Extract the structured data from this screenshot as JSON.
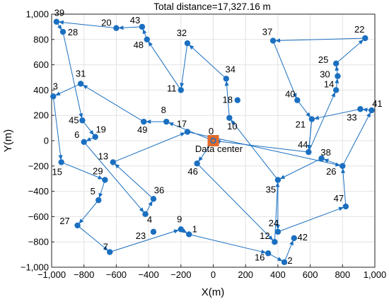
{
  "chart_data": {
    "type": "scatter",
    "title": "Total distance=17,327.16 m",
    "xlabel": "X(m)",
    "ylabel": "Y(m)",
    "xlim": [
      -1000,
      1000
    ],
    "ylim": [
      -1000,
      1000
    ],
    "xticks": [
      -1000,
      -800,
      -600,
      -400,
      -200,
      0,
      200,
      400,
      600,
      800,
      1000
    ],
    "yticks": [
      -1000,
      -800,
      -600,
      -400,
      -200,
      0,
      200,
      400,
      600,
      800,
      1000
    ],
    "grid": true,
    "colors": {
      "route": "#1a6fc0",
      "node": "#1a6fc0",
      "center_fill": "#e06a2b",
      "center_node": "#1a6fc0"
    },
    "data_center": {
      "label": "Data center",
      "x": 0,
      "y": 0
    },
    "nodes": [
      {
        "id": "0",
        "x": 0,
        "y": 0
      },
      {
        "id": "1",
        "x": -150,
        "y": -740
      },
      {
        "id": "2",
        "x": 440,
        "y": -960
      },
      {
        "id": "3",
        "x": -990,
        "y": 350
      },
      {
        "id": "4",
        "x": -420,
        "y": -580
      },
      {
        "id": "5",
        "x": -710,
        "y": -470
      },
      {
        "id": "6",
        "x": -800,
        "y": -10
      },
      {
        "id": "7",
        "x": -640,
        "y": -880
      },
      {
        "id": "8",
        "x": -290,
        "y": 150
      },
      {
        "id": "9",
        "x": -200,
        "y": -700
      },
      {
        "id": "10",
        "x": 100,
        "y": 180
      },
      {
        "id": "11",
        "x": -200,
        "y": 400
      },
      {
        "id": "12",
        "x": 380,
        "y": -800
      },
      {
        "id": "13",
        "x": -620,
        "y": -170
      },
      {
        "id": "14",
        "x": 760,
        "y": 400
      },
      {
        "id": "15",
        "x": -940,
        "y": -170
      },
      {
        "id": "16",
        "x": 340,
        "y": -890
      },
      {
        "id": "17",
        "x": -160,
        "y": 70
      },
      {
        "id": "18",
        "x": 150,
        "y": 320
      },
      {
        "id": "19",
        "x": -730,
        "y": 30
      },
      {
        "id": "20",
        "x": -600,
        "y": 890
      },
      {
        "id": "21",
        "x": 610,
        "y": 170
      },
      {
        "id": "22",
        "x": 940,
        "y": 810
      },
      {
        "id": "23",
        "x": -370,
        "y": -720
      },
      {
        "id": "24",
        "x": 400,
        "y": -720
      },
      {
        "id": "25",
        "x": 760,
        "y": 610
      },
      {
        "id": "26",
        "x": 800,
        "y": -200
      },
      {
        "id": "27",
        "x": -840,
        "y": -670
      },
      {
        "id": "28",
        "x": -930,
        "y": 860
      },
      {
        "id": "29",
        "x": -670,
        "y": -310
      },
      {
        "id": "30",
        "x": 770,
        "y": 510
      },
      {
        "id": "31",
        "x": -820,
        "y": 450
      },
      {
        "id": "32",
        "x": -160,
        "y": 770
      },
      {
        "id": "33",
        "x": 910,
        "y": 250
      },
      {
        "id": "34",
        "x": 80,
        "y": 490
      },
      {
        "id": "35",
        "x": 400,
        "y": -310
      },
      {
        "id": "36",
        "x": -370,
        "y": -460
      },
      {
        "id": "37",
        "x": 370,
        "y": 790
      },
      {
        "id": "38",
        "x": 670,
        "y": -140
      },
      {
        "id": "39",
        "x": -970,
        "y": 940
      },
      {
        "id": "40",
        "x": 520,
        "y": 320
      },
      {
        "id": "41",
        "x": 980,
        "y": 240
      },
      {
        "id": "42",
        "x": 500,
        "y": -770
      },
      {
        "id": "43",
        "x": -440,
        "y": 900
      },
      {
        "id": "44",
        "x": 590,
        "y": -90
      },
      {
        "id": "45",
        "x": -810,
        "y": 160
      },
      {
        "id": "46",
        "x": -100,
        "y": -180
      },
      {
        "id": "47",
        "x": 820,
        "y": -520
      },
      {
        "id": "48",
        "x": -410,
        "y": 800
      },
      {
        "id": "49",
        "x": -430,
        "y": 150
      }
    ],
    "route": [
      "0",
      "46",
      "12",
      "35",
      "10",
      "34",
      "32",
      "11",
      "48",
      "43",
      "20",
      "39",
      "28",
      "45",
      "19",
      "6",
      "4",
      "36",
      "13",
      "17",
      "26",
      "38",
      "35",
      "24",
      "47",
      "26",
      "41",
      "33",
      "21",
      "44",
      "14",
      "30",
      "25",
      "22",
      "37",
      "40",
      "21",
      "44",
      "0",
      "8",
      "49",
      "31",
      "3",
      "15",
      "29",
      "5",
      "27",
      "7",
      "9",
      "1",
      "16",
      "2",
      "42"
    ]
  }
}
